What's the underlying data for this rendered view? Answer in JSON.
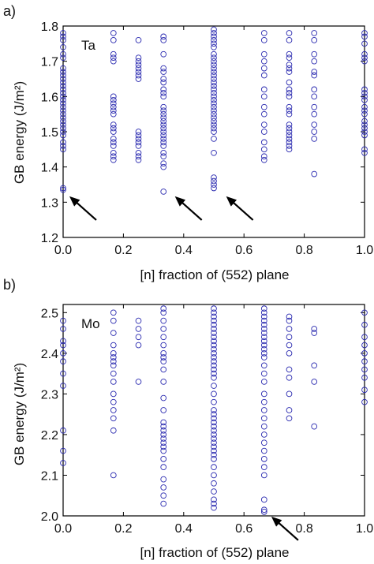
{
  "chart_data": [
    {
      "type": "scatter",
      "panel_label": "a)",
      "element_label": "Ta",
      "xlabel": "[n] fraction of (552) plane",
      "ylabel": "GB energy (J/m²)",
      "xlim": [
        0,
        1
      ],
      "ylim": [
        1.2,
        1.8
      ],
      "xticks": [
        "0.0",
        "0.2",
        "0.4",
        "0.6",
        "0.8",
        "1.0"
      ],
      "yticks": [
        "1.2",
        "1.3",
        "1.4",
        "1.5",
        "1.6",
        "1.7",
        "1.8"
      ],
      "marker_color": "#2b2bb0",
      "columns": [
        {
          "x": 0.0,
          "y": [
            1.335,
            1.34,
            1.45,
            1.46,
            1.47,
            1.49,
            1.5,
            1.51,
            1.52,
            1.53,
            1.54,
            1.55,
            1.56,
            1.57,
            1.58,
            1.59,
            1.6,
            1.61,
            1.62,
            1.63,
            1.64,
            1.65,
            1.66,
            1.67,
            1.68,
            1.71,
            1.72,
            1.74,
            1.76,
            1.77,
            1.78
          ]
        },
        {
          "x": 0.167,
          "y": [
            1.42,
            1.43,
            1.44,
            1.46,
            1.47,
            1.48,
            1.5,
            1.51,
            1.52,
            1.55,
            1.56,
            1.57,
            1.58,
            1.59,
            1.6,
            1.7,
            1.71,
            1.72,
            1.76,
            1.78
          ]
        },
        {
          "x": 0.25,
          "y": [
            1.42,
            1.43,
            1.44,
            1.46,
            1.47,
            1.48,
            1.49,
            1.5,
            1.65,
            1.66,
            1.67,
            1.68,
            1.69,
            1.7,
            1.71,
            1.76
          ]
        },
        {
          "x": 0.333,
          "y": [
            1.33,
            1.4,
            1.41,
            1.43,
            1.44,
            1.46,
            1.47,
            1.48,
            1.49,
            1.5,
            1.51,
            1.52,
            1.53,
            1.54,
            1.55,
            1.56,
            1.57,
            1.6,
            1.61,
            1.62,
            1.64,
            1.65,
            1.67,
            1.68,
            1.72,
            1.76,
            1.77
          ]
        },
        {
          "x": 0.5,
          "y": [
            1.34,
            1.35,
            1.36,
            1.37,
            1.44,
            1.48,
            1.5,
            1.51,
            1.52,
            1.53,
            1.54,
            1.55,
            1.56,
            1.57,
            1.58,
            1.59,
            1.6,
            1.61,
            1.62,
            1.63,
            1.64,
            1.65,
            1.66,
            1.67,
            1.68,
            1.69,
            1.7,
            1.71,
            1.72,
            1.74,
            1.75,
            1.76,
            1.77,
            1.78,
            1.79
          ]
        },
        {
          "x": 0.667,
          "y": [
            1.42,
            1.43,
            1.45,
            1.47,
            1.5,
            1.52,
            1.55,
            1.57,
            1.6,
            1.62,
            1.66,
            1.68,
            1.7,
            1.72,
            1.76,
            1.78
          ]
        },
        {
          "x": 0.75,
          "y": [
            1.45,
            1.46,
            1.47,
            1.48,
            1.49,
            1.5,
            1.51,
            1.52,
            1.55,
            1.56,
            1.57,
            1.6,
            1.61,
            1.62,
            1.64,
            1.67,
            1.68,
            1.69,
            1.71,
            1.72,
            1.76,
            1.78
          ]
        },
        {
          "x": 0.833,
          "y": [
            1.38,
            1.48,
            1.5,
            1.52,
            1.55,
            1.57,
            1.6,
            1.62,
            1.66,
            1.67,
            1.7,
            1.72,
            1.76,
            1.78
          ]
        },
        {
          "x": 1.0,
          "y": [
            1.44,
            1.45,
            1.49,
            1.5,
            1.51,
            1.52,
            1.53,
            1.55,
            1.56,
            1.57,
            1.59,
            1.6,
            1.61,
            1.62,
            1.7,
            1.71,
            1.72,
            1.75,
            1.77,
            1.78
          ]
        }
      ],
      "arrows_point_to": [
        [
          0.0,
          1.33
        ],
        [
          0.35,
          1.33
        ],
        [
          0.52,
          1.33
        ]
      ]
    },
    {
      "type": "scatter",
      "panel_label": "b)",
      "element_label": "Mo",
      "xlabel": "[n] fraction of (552) plane",
      "ylabel": "GB energy (J/m²)",
      "xlim": [
        0,
        1
      ],
      "ylim": [
        2.0,
        2.52
      ],
      "xticks": [
        "0.0",
        "0.2",
        "0.4",
        "0.6",
        "0.8",
        "1.0"
      ],
      "yticks": [
        "2.0",
        "2.1",
        "2.2",
        "2.3",
        "2.4",
        "2.5"
      ],
      "marker_color": "#2b2bb0",
      "columns": [
        {
          "x": 0.0,
          "y": [
            2.13,
            2.16,
            2.21,
            2.32,
            2.35,
            2.38,
            2.4,
            2.42,
            2.43,
            2.46,
            2.48
          ]
        },
        {
          "x": 0.167,
          "y": [
            2.1,
            2.21,
            2.24,
            2.26,
            2.28,
            2.3,
            2.33,
            2.35,
            2.37,
            2.38,
            2.39,
            2.4,
            2.42,
            2.45,
            2.48,
            2.5
          ]
        },
        {
          "x": 0.25,
          "y": [
            2.33,
            2.42,
            2.44,
            2.46,
            2.48
          ]
        },
        {
          "x": 0.333,
          "y": [
            2.03,
            2.05,
            2.07,
            2.09,
            2.12,
            2.14,
            2.16,
            2.17,
            2.18,
            2.19,
            2.2,
            2.21,
            2.22,
            2.23,
            2.26,
            2.29,
            2.33,
            2.36,
            2.38,
            2.39,
            2.4,
            2.42,
            2.44,
            2.46,
            2.48,
            2.5,
            2.51
          ]
        },
        {
          "x": 0.5,
          "y": [
            2.02,
            2.03,
            2.04,
            2.06,
            2.08,
            2.1,
            2.12,
            2.14,
            2.15,
            2.16,
            2.17,
            2.18,
            2.19,
            2.2,
            2.21,
            2.22,
            2.23,
            2.24,
            2.25,
            2.26,
            2.28,
            2.3,
            2.32,
            2.34,
            2.35,
            2.36,
            2.37,
            2.38,
            2.39,
            2.4,
            2.41,
            2.42,
            2.43,
            2.44,
            2.45,
            2.46,
            2.47,
            2.48,
            2.49,
            2.5,
            2.51
          ]
        },
        {
          "x": 0.667,
          "y": [
            2.01,
            2.015,
            2.04,
            2.1,
            2.12,
            2.14,
            2.16,
            2.18,
            2.2,
            2.22,
            2.24,
            2.26,
            2.28,
            2.3,
            2.33,
            2.35,
            2.37,
            2.39,
            2.4,
            2.41,
            2.42,
            2.43,
            2.44,
            2.45,
            2.46,
            2.47,
            2.48,
            2.49,
            2.5,
            2.51
          ]
        },
        {
          "x": 0.75,
          "y": [
            2.24,
            2.26,
            2.3,
            2.34,
            2.36,
            2.4,
            2.42,
            2.44,
            2.46,
            2.48,
            2.49
          ]
        },
        {
          "x": 0.833,
          "y": [
            2.22,
            2.33,
            2.37,
            2.45,
            2.46
          ]
        },
        {
          "x": 1.0,
          "y": [
            2.28,
            2.31,
            2.34,
            2.36,
            2.38,
            2.4,
            2.42,
            2.44,
            2.47,
            2.5
          ]
        }
      ],
      "arrows_point_to": [
        [
          0.67,
          2.01
        ]
      ]
    }
  ]
}
